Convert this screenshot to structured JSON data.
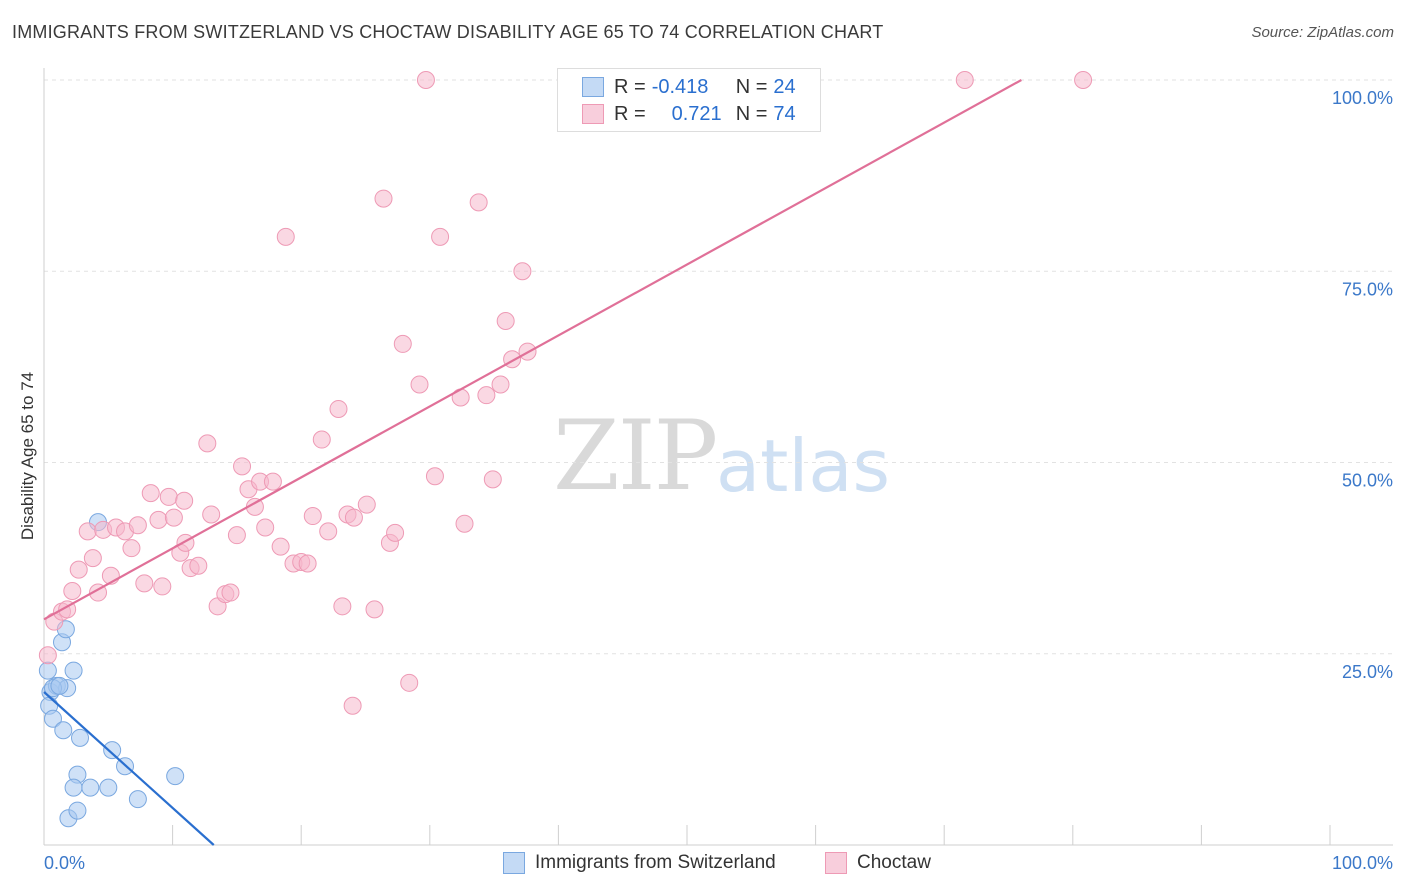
{
  "header": {
    "title": "IMMIGRANTS FROM SWITZERLAND VS CHOCTAW DISABILITY AGE 65 TO 74 CORRELATION CHART",
    "source": "Source: ZipAtlas.com"
  },
  "watermark": {
    "zip": "ZIP",
    "atlas": "atlas"
  },
  "legend": {
    "r_label": "R =",
    "n_label": "N =",
    "rows": [
      {
        "name": "Immigrants from Switzerland",
        "r": "-0.418",
        "n": "24",
        "color": "#a8c8f0"
      },
      {
        "name": "Choctaw",
        "r": "0.721",
        "n": "74",
        "color": "#f5b8cc"
      }
    ]
  },
  "chart_data": {
    "type": "scatter",
    "title": "IMMIGRANTS FROM SWITZERLAND VS CHOCTAW DISABILITY AGE 65 TO 74 CORRELATION CHART",
    "xlabel": "",
    "ylabel": "Disability Age 65 to 74",
    "xlim": [
      0,
      100
    ],
    "ylim": [
      0,
      100
    ],
    "x_tick_labels": [
      "0.0%",
      "100.0%"
    ],
    "y_tick_labels": [
      "25.0%",
      "50.0%",
      "75.0%",
      "100.0%"
    ],
    "y_ticks": [
      25,
      50,
      75,
      100
    ],
    "series": [
      {
        "name": "Immigrants from Switzerland",
        "color": "#a8c8f0",
        "stroke": "#7aa8e0",
        "line_color": "#2a6fcf",
        "trend": {
          "x0": 0,
          "y0": 20.0,
          "x1": 13.2,
          "y1": 0.0
        },
        "points": [
          [
            0.3,
            22.8
          ],
          [
            0.5,
            20.0
          ],
          [
            0.4,
            18.2
          ],
          [
            0.7,
            16.5
          ],
          [
            1.0,
            20.8
          ],
          [
            1.4,
            26.5
          ],
          [
            1.7,
            28.2
          ],
          [
            1.8,
            20.5
          ],
          [
            1.5,
            15.0
          ],
          [
            2.3,
            22.8
          ],
          [
            2.6,
            9.2
          ],
          [
            2.3,
            7.5
          ],
          [
            1.9,
            3.5
          ],
          [
            2.6,
            4.5
          ],
          [
            2.8,
            14.0
          ],
          [
            3.6,
            7.5
          ],
          [
            4.2,
            42.2
          ],
          [
            5.0,
            7.5
          ],
          [
            5.3,
            12.4
          ],
          [
            6.3,
            10.3
          ],
          [
            7.3,
            6.0
          ],
          [
            10.2,
            9.0
          ],
          [
            0.7,
            20.5
          ],
          [
            1.2,
            20.8
          ]
        ]
      },
      {
        "name": "Choctaw",
        "color": "#f5b8cc",
        "stroke": "#ee9ab5",
        "line_color": "#e07098",
        "trend": {
          "x0": 0,
          "y0": 29.5,
          "x1": 76.0,
          "y1": 100.0
        },
        "points": [
          [
            0.3,
            24.8
          ],
          [
            0.8,
            29.2
          ],
          [
            1.4,
            30.5
          ],
          [
            1.8,
            30.8
          ],
          [
            2.2,
            33.2
          ],
          [
            2.7,
            36.0
          ],
          [
            3.4,
            41.0
          ],
          [
            3.8,
            37.5
          ],
          [
            4.2,
            33.0
          ],
          [
            4.6,
            41.2
          ],
          [
            5.2,
            35.2
          ],
          [
            5.6,
            41.5
          ],
          [
            6.3,
            41.0
          ],
          [
            6.8,
            38.8
          ],
          [
            7.3,
            41.8
          ],
          [
            7.8,
            34.2
          ],
          [
            8.3,
            46.0
          ],
          [
            8.9,
            42.5
          ],
          [
            9.2,
            33.8
          ],
          [
            9.7,
            45.5
          ],
          [
            10.1,
            42.8
          ],
          [
            10.6,
            38.2
          ],
          [
            11.0,
            39.5
          ],
          [
            11.4,
            36.2
          ],
          [
            12.0,
            36.5
          ],
          [
            12.7,
            52.5
          ],
          [
            13.0,
            43.2
          ],
          [
            13.5,
            31.2
          ],
          [
            14.1,
            32.8
          ],
          [
            14.5,
            33.0
          ],
          [
            15.0,
            40.5
          ],
          [
            15.4,
            49.5
          ],
          [
            15.9,
            46.5
          ],
          [
            16.4,
            44.2
          ],
          [
            16.8,
            47.5
          ],
          [
            17.2,
            41.5
          ],
          [
            17.8,
            47.5
          ],
          [
            18.4,
            39.0
          ],
          [
            18.8,
            79.5
          ],
          [
            19.4,
            36.8
          ],
          [
            20.0,
            37.0
          ],
          [
            20.5,
            36.8
          ],
          [
            20.9,
            43.0
          ],
          [
            21.6,
            53.0
          ],
          [
            22.1,
            41.0
          ],
          [
            22.9,
            57.0
          ],
          [
            23.2,
            31.2
          ],
          [
            23.6,
            43.2
          ],
          [
            24.1,
            42.8
          ],
          [
            25.1,
            44.5
          ],
          [
            25.7,
            30.8
          ],
          [
            26.4,
            84.5
          ],
          [
            26.9,
            39.5
          ],
          [
            27.3,
            40.8
          ],
          [
            27.9,
            65.5
          ],
          [
            28.4,
            21.2
          ],
          [
            29.2,
            60.2
          ],
          [
            29.7,
            100.0
          ],
          [
            30.4,
            48.2
          ],
          [
            30.8,
            79.5
          ],
          [
            32.4,
            58.5
          ],
          [
            32.7,
            42.0
          ],
          [
            33.8,
            84.0
          ],
          [
            34.4,
            58.8
          ],
          [
            34.9,
            47.8
          ],
          [
            35.5,
            60.2
          ],
          [
            35.9,
            68.5
          ],
          [
            36.4,
            63.5
          ],
          [
            37.2,
            75.0
          ],
          [
            37.6,
            64.5
          ],
          [
            24.0,
            18.2
          ],
          [
            71.6,
            100.0
          ],
          [
            80.8,
            100.0
          ],
          [
            10.9,
            45.0
          ]
        ]
      }
    ]
  }
}
